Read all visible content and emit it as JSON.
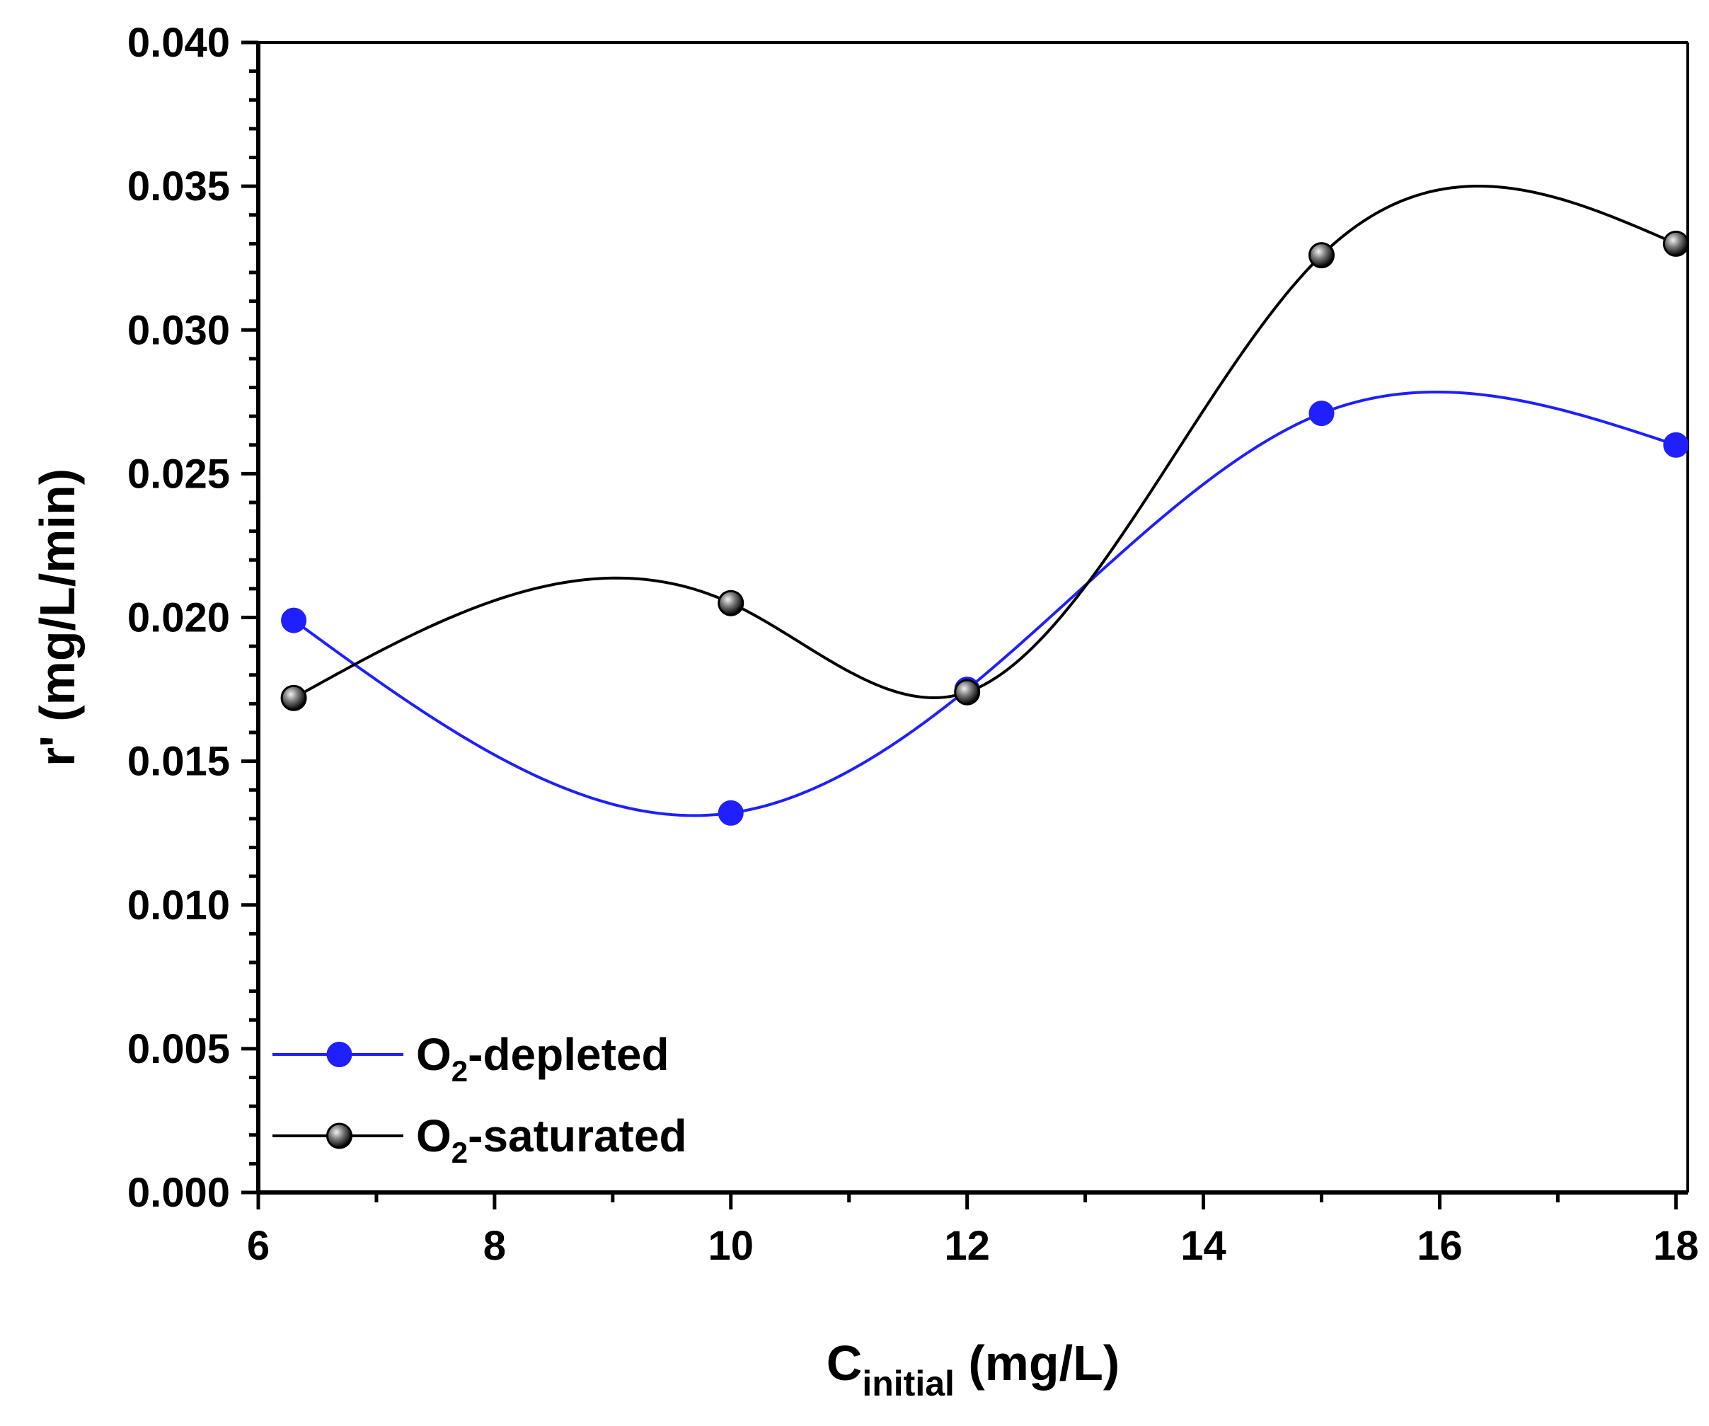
{
  "chart_data": {
    "type": "line",
    "title": "",
    "xlabel": {
      "main": "C",
      "sub": "initial",
      "units": "(mg/L)"
    },
    "ylabel": "r' (mg/L/min)",
    "xlim": [
      6,
      18.1
    ],
    "ylim": [
      0,
      0.04
    ],
    "xticks": [
      "6",
      "8",
      "10",
      "12",
      "14",
      "16",
      "18"
    ],
    "yticks": [
      "0.000",
      "0.005",
      "0.010",
      "0.015",
      "0.020",
      "0.025",
      "0.030",
      "0.035",
      "0.040"
    ],
    "x": [
      6.3,
      10,
      12,
      15,
      18
    ],
    "series": [
      {
        "name": "O2-depleted",
        "label_main": "O",
        "label_sub": "2",
        "label_rest": "-depleted",
        "color": "#1f1fff",
        "marker": "filled-circle",
        "values": [
          0.0199,
          0.0132,
          0.0175,
          0.0271,
          0.026
        ]
      },
      {
        "name": "O2-saturated",
        "label_main": "O",
        "label_sub": "2",
        "label_rest": "-saturated",
        "color": "#000000",
        "marker": "shaded-sphere",
        "values": [
          0.0172,
          0.0205,
          0.0174,
          0.0326,
          0.033
        ]
      }
    ],
    "legend_position": "bottom-left",
    "grid": false
  }
}
